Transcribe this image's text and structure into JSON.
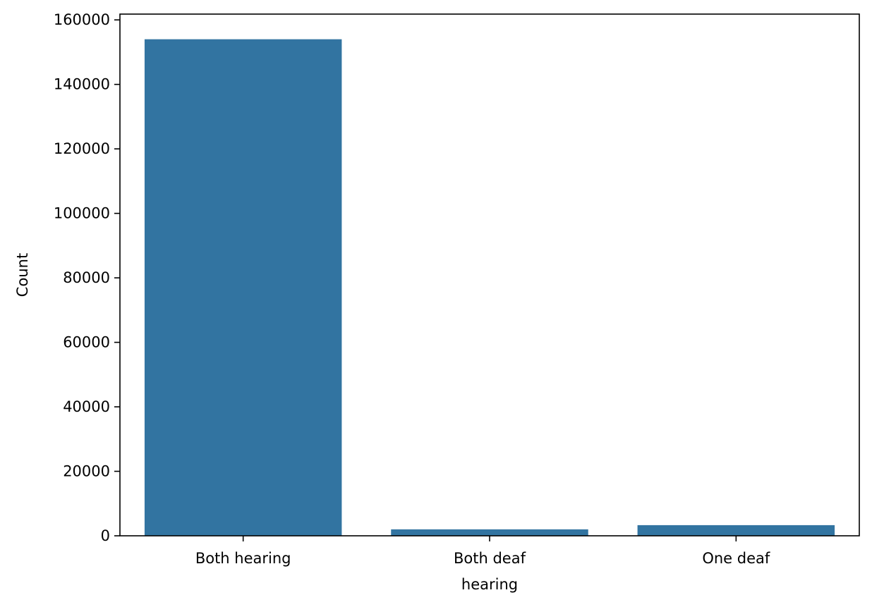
{
  "chart_data": {
    "type": "bar",
    "categories": [
      "Both hearing",
      "Both deaf",
      "One deaf"
    ],
    "values": [
      154000,
      2000,
      3300
    ],
    "xlabel": "hearing",
    "ylabel": "Count",
    "ylim": [
      0,
      161800
    ],
    "yticks": [
      0,
      20000,
      40000,
      60000,
      80000,
      100000,
      120000,
      140000,
      160000
    ],
    "ytick_labels": [
      "0",
      "20000",
      "40000",
      "60000",
      "80000",
      "100000",
      "120000",
      "140000",
      "160000"
    ],
    "grid": false,
    "legend": "none",
    "bar_color": "#3274a1"
  }
}
